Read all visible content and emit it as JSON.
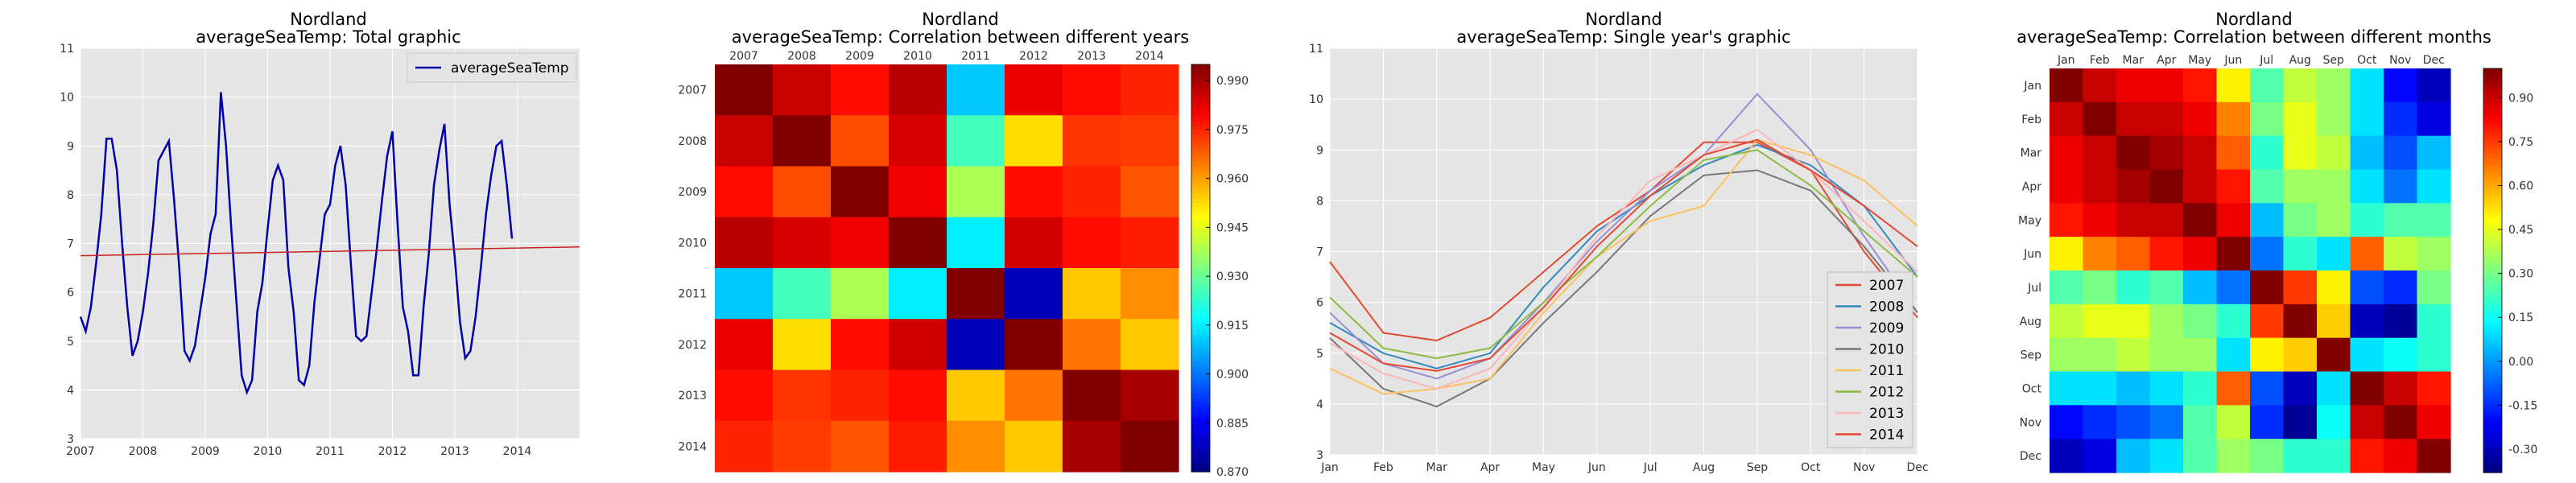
{
  "panels": {
    "total": {
      "title": "Nordland",
      "subtitle": "averageSeaTemp: Total graphic"
    },
    "years_corr": {
      "title": "Nordland",
      "subtitle": "averageSeaTemp: Correlation between different years"
    },
    "single_year": {
      "title": "Nordland",
      "subtitle": "averageSeaTemp: Single year's graphic"
    },
    "months_corr": {
      "title": "Nordland",
      "subtitle": "averageSeaTemp: Correlation between different months"
    }
  },
  "colors": {
    "plot_background": "#e5e5e5",
    "grid": "#ffffff",
    "series_blue": "#0000aa",
    "trend_red": "#cc2222",
    "year_colors": [
      "#e24a33",
      "#348abd",
      "#988ed5",
      "#777777",
      "#fbc15e",
      "#8eba42",
      "#ffb5b8",
      "#e24a33"
    ]
  },
  "chart_data": [
    {
      "type": "line",
      "title": "Nordland",
      "subtitle": "averageSeaTemp: Total graphic",
      "xlabel": "",
      "ylabel": "",
      "x_ticks": [
        "2007",
        "2008",
        "2009",
        "2010",
        "2011",
        "2012",
        "2013",
        "2014"
      ],
      "xlim": [
        2007,
        2015
      ],
      "y_ticks": [
        3,
        4,
        5,
        6,
        7,
        8,
        9,
        10,
        11
      ],
      "ylim": [
        3,
        11
      ],
      "grid": true,
      "legend": {
        "placement": "top-right",
        "entries": [
          "averageSeaTemp"
        ]
      },
      "series": [
        {
          "name": "averageSeaTemp",
          "x_start": 2007,
          "step": 0.08333,
          "values": [
            5.5,
            5.2,
            5.7,
            6.6,
            7.6,
            9.15,
            9.15,
            8.5,
            7.0,
            5.7,
            4.7,
            5.0,
            5.6,
            6.4,
            7.4,
            8.7,
            8.9,
            9.1,
            7.9,
            6.5,
            4.8,
            4.6,
            4.9,
            5.6,
            6.3,
            7.2,
            7.6,
            10.1,
            9.0,
            7.3,
            5.8,
            4.3,
            3.95,
            4.2,
            5.6,
            6.2,
            7.3,
            8.3,
            8.6,
            8.3,
            6.5,
            5.6,
            4.2,
            4.1,
            4.5,
            5.8,
            6.7,
            7.6,
            7.8,
            8.6,
            9.0,
            8.2,
            6.6,
            5.1,
            5.0,
            5.1,
            6.0,
            6.9,
            7.9,
            8.8,
            9.3,
            7.4,
            5.7,
            5.2,
            4.3,
            4.3,
            5.7,
            6.8,
            8.2,
            8.9,
            9.45,
            7.8,
            6.7,
            5.4,
            4.65,
            4.8,
            5.5,
            6.5,
            7.6,
            8.4,
            9.0,
            9.1,
            8.2,
            7.1
          ]
        },
        {
          "name": "trend",
          "x": [
            2007,
            2015
          ],
          "values": [
            6.75,
            6.93
          ]
        }
      ]
    },
    {
      "type": "heatmap",
      "title": "Nordland",
      "subtitle": "averageSeaTemp: Correlation between different years",
      "x_categories": [
        "2007",
        "2008",
        "2009",
        "2010",
        "2011",
        "2012",
        "2013",
        "2014"
      ],
      "y_categories": [
        "2007",
        "2008",
        "2009",
        "2010",
        "2011",
        "2012",
        "2013",
        "2014"
      ],
      "colorbar": {
        "min": 0.87,
        "max": 0.995,
        "ticks": [
          "0.990",
          "0.975",
          "0.960",
          "0.945",
          "0.930",
          "0.915",
          "0.900",
          "0.885",
          "0.870"
        ]
      },
      "matrix": [
        [
          1.0,
          0.986,
          0.978,
          0.988,
          0.91,
          0.982,
          0.978,
          0.975
        ],
        [
          0.986,
          1.0,
          0.97,
          0.984,
          0.925,
          0.952,
          0.973,
          0.972
        ],
        [
          0.978,
          0.97,
          1.0,
          0.981,
          0.938,
          0.978,
          0.975,
          0.969
        ],
        [
          0.988,
          0.984,
          0.981,
          1.0,
          0.915,
          0.985,
          0.978,
          0.976
        ],
        [
          0.91,
          0.925,
          0.938,
          0.915,
          1.0,
          0.877,
          0.955,
          0.962
        ],
        [
          0.982,
          0.952,
          0.978,
          0.985,
          0.877,
          1.0,
          0.965,
          0.955
        ],
        [
          0.978,
          0.973,
          0.975,
          0.978,
          0.955,
          0.965,
          1.0,
          0.99
        ],
        [
          0.975,
          0.972,
          0.969,
          0.976,
          0.962,
          0.955,
          0.99,
          1.0
        ]
      ]
    },
    {
      "type": "line",
      "title": "Nordland",
      "subtitle": "averageSeaTemp: Single year's graphic",
      "xlabel": "",
      "ylabel": "",
      "categories": [
        "Jan",
        "Feb",
        "Mar",
        "Apr",
        "May",
        "Jun",
        "Jul",
        "Aug",
        "Sep",
        "Oct",
        "Nov",
        "Dec"
      ],
      "y_ticks": [
        3,
        4,
        5,
        6,
        7,
        8,
        9,
        10,
        11
      ],
      "ylim": [
        3,
        11
      ],
      "grid": true,
      "legend": {
        "placement": "lower-right",
        "entries": [
          "2007",
          "2008",
          "2009",
          "2010",
          "2011",
          "2012",
          "2013",
          "2014"
        ]
      },
      "series": [
        {
          "name": "2007",
          "values": [
            6.8,
            5.4,
            5.25,
            5.7,
            6.6,
            7.5,
            8.2,
            9.15,
            9.15,
            8.6,
            7.0,
            5.7
          ]
        },
        {
          "name": "2008",
          "values": [
            5.6,
            5.0,
            4.7,
            5.0,
            6.3,
            7.4,
            8.1,
            8.7,
            9.1,
            8.7,
            7.9,
            6.5
          ]
        },
        {
          "name": "2009",
          "values": [
            5.8,
            4.8,
            4.5,
            4.9,
            6.0,
            7.2,
            8.2,
            8.9,
            10.1,
            9.0,
            7.3,
            5.8
          ]
        },
        {
          "name": "2010",
          "values": [
            5.3,
            4.3,
            3.95,
            4.5,
            5.6,
            6.6,
            7.7,
            8.5,
            8.6,
            8.2,
            7.1,
            5.8
          ]
        },
        {
          "name": "2011",
          "values": [
            4.7,
            4.2,
            4.3,
            4.5,
            5.8,
            6.9,
            7.6,
            7.9,
            9.2,
            8.9,
            8.4,
            7.5
          ]
        },
        {
          "name": "2012",
          "values": [
            6.1,
            5.1,
            4.9,
            5.1,
            6.0,
            6.9,
            7.9,
            8.8,
            9.0,
            8.3,
            7.4,
            6.5
          ]
        },
        {
          "name": "2013",
          "values": [
            5.2,
            4.6,
            4.3,
            4.7,
            5.9,
            7.3,
            8.4,
            8.9,
            9.4,
            8.6,
            7.6,
            6.6
          ]
        },
        {
          "name": "2014",
          "values": [
            5.4,
            4.8,
            4.65,
            4.9,
            5.9,
            7.1,
            8.1,
            8.9,
            9.2,
            8.6,
            7.9,
            7.1
          ]
        }
      ]
    },
    {
      "type": "heatmap",
      "title": "Nordland",
      "subtitle": "averageSeaTemp: Correlation between different months",
      "x_categories": [
        "Jan",
        "Feb",
        "Mar",
        "Apr",
        "May",
        "Jun",
        "Jul",
        "Aug",
        "Sep",
        "Oct",
        "Nov",
        "Dec"
      ],
      "y_categories": [
        "Jan",
        "Feb",
        "Mar",
        "Apr",
        "May",
        "Jun",
        "Jul",
        "Aug",
        "Sep",
        "Oct",
        "Nov",
        "Dec"
      ],
      "colorbar": {
        "min": -0.38,
        "max": 1.0,
        "ticks": [
          "0.90",
          "0.75",
          "0.60",
          "0.45",
          "0.30",
          "0.15",
          "0.00",
          "-0.15",
          "-0.30"
        ]
      },
      "matrix": [
        [
          1.0,
          0.9,
          0.85,
          0.85,
          0.8,
          0.5,
          0.25,
          0.4,
          0.35,
          0.1,
          -0.2,
          -0.3
        ],
        [
          0.9,
          1.0,
          0.9,
          0.9,
          0.85,
          0.65,
          0.3,
          0.45,
          0.35,
          0.1,
          -0.15,
          -0.25
        ],
        [
          0.85,
          0.9,
          1.0,
          0.95,
          0.9,
          0.7,
          0.2,
          0.45,
          0.4,
          0.05,
          -0.1,
          0.05
        ],
        [
          0.85,
          0.9,
          0.95,
          1.0,
          0.9,
          0.8,
          0.25,
          0.35,
          0.35,
          0.1,
          -0.05,
          0.1
        ],
        [
          0.8,
          0.85,
          0.9,
          0.9,
          1.0,
          0.85,
          0.05,
          0.3,
          0.35,
          0.2,
          0.25,
          0.25
        ],
        [
          0.5,
          0.65,
          0.7,
          0.8,
          0.85,
          1.0,
          -0.05,
          0.2,
          0.1,
          0.7,
          0.4,
          0.35
        ],
        [
          0.25,
          0.3,
          0.2,
          0.25,
          0.05,
          -0.05,
          1.0,
          0.75,
          0.5,
          -0.1,
          -0.15,
          0.3
        ],
        [
          0.4,
          0.45,
          0.45,
          0.35,
          0.3,
          0.2,
          0.75,
          1.0,
          0.55,
          -0.3,
          -0.35,
          0.2
        ],
        [
          0.35,
          0.35,
          0.4,
          0.35,
          0.35,
          0.1,
          0.5,
          0.55,
          1.0,
          0.1,
          0.15,
          0.2
        ],
        [
          0.1,
          0.1,
          0.05,
          0.1,
          0.2,
          0.7,
          -0.1,
          -0.3,
          0.1,
          1.0,
          0.9,
          0.8
        ],
        [
          -0.2,
          -0.15,
          -0.1,
          -0.05,
          0.25,
          0.4,
          -0.15,
          -0.35,
          0.15,
          0.9,
          1.0,
          0.85
        ],
        [
          -0.3,
          -0.25,
          0.05,
          0.1,
          0.25,
          0.35,
          0.3,
          0.2,
          0.2,
          0.8,
          0.85,
          1.0
        ]
      ]
    }
  ]
}
